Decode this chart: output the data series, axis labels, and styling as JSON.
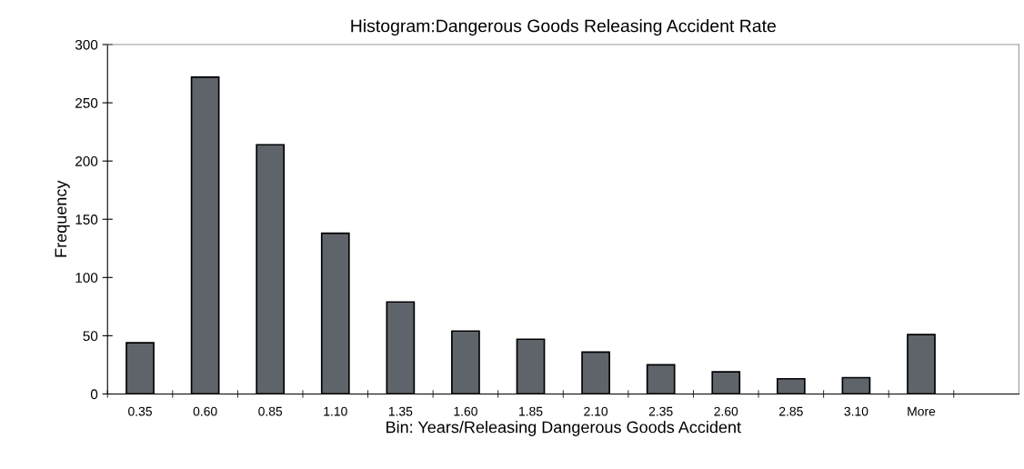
{
  "chart_data": {
    "type": "bar",
    "title": "Histogram:Dangerous Goods Releasing Accident Rate",
    "xlabel": "Bin: Years/Releasing Dangerous Goods Accident",
    "ylabel": "Frequency",
    "categories": [
      "0.35",
      "0.60",
      "0.85",
      "1.10",
      "1.35",
      "1.60",
      "1.85",
      "2.10",
      "2.35",
      "2.60",
      "2.85",
      "3.10",
      "More"
    ],
    "values": [
      44,
      272,
      214,
      138,
      79,
      54,
      47,
      36,
      25,
      19,
      13,
      14,
      51
    ],
    "color": "#5f646b",
    "ylim": [
      0,
      300
    ],
    "yticks": [
      0,
      50,
      100,
      150,
      200,
      250,
      300
    ],
    "grid": false,
    "legend": false
  }
}
